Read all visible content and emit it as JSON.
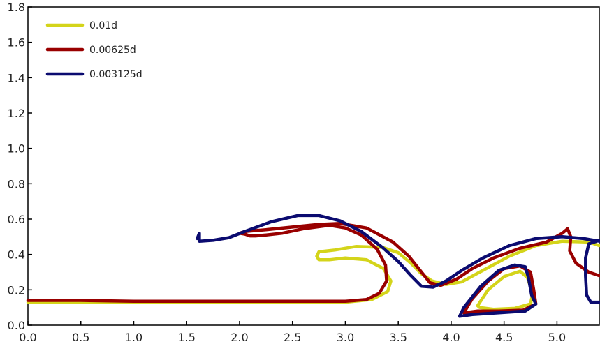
{
  "chart_data": {
    "type": "line",
    "title": "",
    "xlabel": "",
    "ylabel": "",
    "xlim": [
      0.0,
      5.4
    ],
    "ylim": [
      0.0,
      1.8
    ],
    "grid": false,
    "legend_position": "top-left",
    "x_ticks": [
      "0.0",
      "0.5",
      "1.0",
      "1.5",
      "2.0",
      "2.5",
      "3.0",
      "3.5",
      "4.0",
      "4.5",
      "5.0"
    ],
    "x_tick_values": [
      0.0,
      0.5,
      1.0,
      1.5,
      2.0,
      2.5,
      3.0,
      3.5,
      4.0,
      4.5,
      5.0
    ],
    "y_ticks": [
      "0.0",
      "0.2",
      "0.4",
      "0.6",
      "0.8",
      "1.0",
      "1.2",
      "1.4",
      "1.6",
      "1.8"
    ],
    "y_tick_values": [
      0.0,
      0.2,
      0.4,
      0.6,
      0.8,
      1.0,
      1.2,
      1.4,
      1.6,
      1.8
    ],
    "series": [
      {
        "name": "0.01d",
        "color": "#d4d41a",
        "points": [
          [
            0.0,
            0.13
          ],
          [
            0.5,
            0.13
          ],
          [
            1.0,
            0.13
          ],
          [
            1.5,
            0.13
          ],
          [
            2.0,
            0.13
          ],
          [
            2.5,
            0.13
          ],
          [
            3.0,
            0.13
          ],
          [
            3.25,
            0.145
          ],
          [
            3.4,
            0.19
          ],
          [
            3.43,
            0.25
          ],
          [
            3.36,
            0.32
          ],
          [
            3.2,
            0.37
          ],
          [
            3.0,
            0.38
          ],
          [
            2.85,
            0.37
          ],
          [
            2.75,
            0.37
          ],
          [
            2.73,
            0.39
          ],
          [
            2.75,
            0.415
          ],
          [
            2.9,
            0.425
          ],
          [
            3.1,
            0.445
          ],
          [
            3.35,
            0.44
          ],
          [
            3.5,
            0.41
          ],
          [
            3.62,
            0.35
          ],
          [
            3.72,
            0.29
          ],
          [
            3.82,
            0.25
          ],
          [
            3.95,
            0.23
          ],
          [
            4.1,
            0.245
          ],
          [
            4.3,
            0.31
          ],
          [
            4.55,
            0.39
          ],
          [
            4.8,
            0.45
          ],
          [
            5.05,
            0.475
          ],
          [
            5.3,
            0.47
          ],
          [
            5.4,
            0.45
          ]
        ]
      },
      {
        "name": "0.01d",
        "color": "#d4d41a",
        "points": [
          [
            4.25,
            0.11
          ],
          [
            4.35,
            0.2
          ],
          [
            4.5,
            0.275
          ],
          [
            4.65,
            0.305
          ],
          [
            4.72,
            0.27
          ],
          [
            4.77,
            0.18
          ],
          [
            4.75,
            0.12
          ],
          [
            4.6,
            0.095
          ],
          [
            4.4,
            0.09
          ],
          [
            4.27,
            0.1
          ],
          [
            4.25,
            0.11
          ]
        ]
      },
      {
        "name": "0.00625d",
        "color": "#990000",
        "points": [
          [
            0.0,
            0.14
          ],
          [
            0.5,
            0.14
          ],
          [
            1.0,
            0.135
          ],
          [
            1.5,
            0.135
          ],
          [
            2.0,
            0.135
          ],
          [
            2.5,
            0.135
          ],
          [
            3.0,
            0.135
          ],
          [
            3.2,
            0.145
          ],
          [
            3.32,
            0.18
          ],
          [
            3.39,
            0.25
          ],
          [
            3.38,
            0.34
          ],
          [
            3.3,
            0.43
          ],
          [
            3.15,
            0.51
          ],
          [
            3.0,
            0.55
          ],
          [
            2.85,
            0.565
          ],
          [
            2.6,
            0.545
          ],
          [
            2.4,
            0.52
          ],
          [
            2.25,
            0.51
          ],
          [
            2.15,
            0.505
          ],
          [
            2.1,
            0.505
          ],
          [
            2.05,
            0.515
          ],
          [
            2.0,
            0.52
          ],
          [
            2.05,
            0.53
          ],
          [
            2.25,
            0.54
          ],
          [
            2.5,
            0.555
          ],
          [
            2.75,
            0.57
          ],
          [
            2.95,
            0.575
          ],
          [
            3.2,
            0.55
          ],
          [
            3.45,
            0.47
          ],
          [
            3.6,
            0.39
          ],
          [
            3.72,
            0.3
          ],
          [
            3.8,
            0.24
          ],
          [
            3.9,
            0.225
          ],
          [
            4.05,
            0.26
          ],
          [
            4.2,
            0.32
          ],
          [
            4.4,
            0.38
          ],
          [
            4.65,
            0.435
          ],
          [
            4.9,
            0.47
          ],
          [
            5.05,
            0.52
          ],
          [
            5.1,
            0.545
          ],
          [
            5.13,
            0.5
          ],
          [
            5.12,
            0.42
          ],
          [
            5.18,
            0.35
          ],
          [
            5.3,
            0.3
          ],
          [
            5.4,
            0.28
          ]
        ]
      },
      {
        "name": "0.00625d",
        "color": "#990000",
        "points": [
          [
            4.12,
            0.07
          ],
          [
            4.2,
            0.15
          ],
          [
            4.35,
            0.25
          ],
          [
            4.5,
            0.32
          ],
          [
            4.65,
            0.335
          ],
          [
            4.75,
            0.3
          ],
          [
            4.78,
            0.2
          ],
          [
            4.8,
            0.12
          ],
          [
            4.68,
            0.085
          ],
          [
            4.45,
            0.08
          ],
          [
            4.25,
            0.08
          ],
          [
            4.12,
            0.07
          ]
        ]
      },
      {
        "name": "0.003125d",
        "color": "#0b0b70",
        "points": [
          [
            1.6,
            0.49
          ],
          [
            1.62,
            0.52
          ],
          [
            1.62,
            0.475
          ],
          [
            1.75,
            0.48
          ],
          [
            1.9,
            0.495
          ],
          [
            2.05,
            0.53
          ],
          [
            2.3,
            0.585
          ],
          [
            2.55,
            0.62
          ],
          [
            2.75,
            0.62
          ],
          [
            2.95,
            0.59
          ],
          [
            3.15,
            0.53
          ],
          [
            3.35,
            0.44
          ],
          [
            3.5,
            0.36
          ],
          [
            3.62,
            0.28
          ],
          [
            3.72,
            0.22
          ],
          [
            3.83,
            0.215
          ],
          [
            3.95,
            0.25
          ],
          [
            4.1,
            0.31
          ],
          [
            4.3,
            0.38
          ],
          [
            4.55,
            0.45
          ],
          [
            4.8,
            0.49
          ],
          [
            5.05,
            0.5
          ],
          [
            5.25,
            0.49
          ],
          [
            5.4,
            0.475
          ]
        ]
      },
      {
        "name": "0.003125d",
        "color": "#0b0b70",
        "points": [
          [
            4.08,
            0.05
          ],
          [
            4.12,
            0.1
          ],
          [
            4.28,
            0.22
          ],
          [
            4.45,
            0.31
          ],
          [
            4.6,
            0.34
          ],
          [
            4.7,
            0.33
          ],
          [
            4.73,
            0.27
          ],
          [
            4.76,
            0.17
          ],
          [
            4.8,
            0.12
          ],
          [
            4.7,
            0.08
          ],
          [
            4.45,
            0.07
          ],
          [
            4.2,
            0.06
          ],
          [
            4.08,
            0.05
          ]
        ]
      },
      {
        "name": "0.003125d",
        "color": "#0b0b70",
        "points": [
          [
            5.4,
            0.48
          ],
          [
            5.3,
            0.46
          ],
          [
            5.27,
            0.38
          ],
          [
            5.27,
            0.28
          ],
          [
            5.28,
            0.17
          ],
          [
            5.32,
            0.13
          ],
          [
            5.4,
            0.13
          ]
        ]
      }
    ],
    "legend": [
      {
        "label": "0.01d",
        "color": "#d4d41a"
      },
      {
        "label": "0.00625d",
        "color": "#990000"
      },
      {
        "label": "0.003125d",
        "color": "#0b0b70"
      }
    ]
  }
}
